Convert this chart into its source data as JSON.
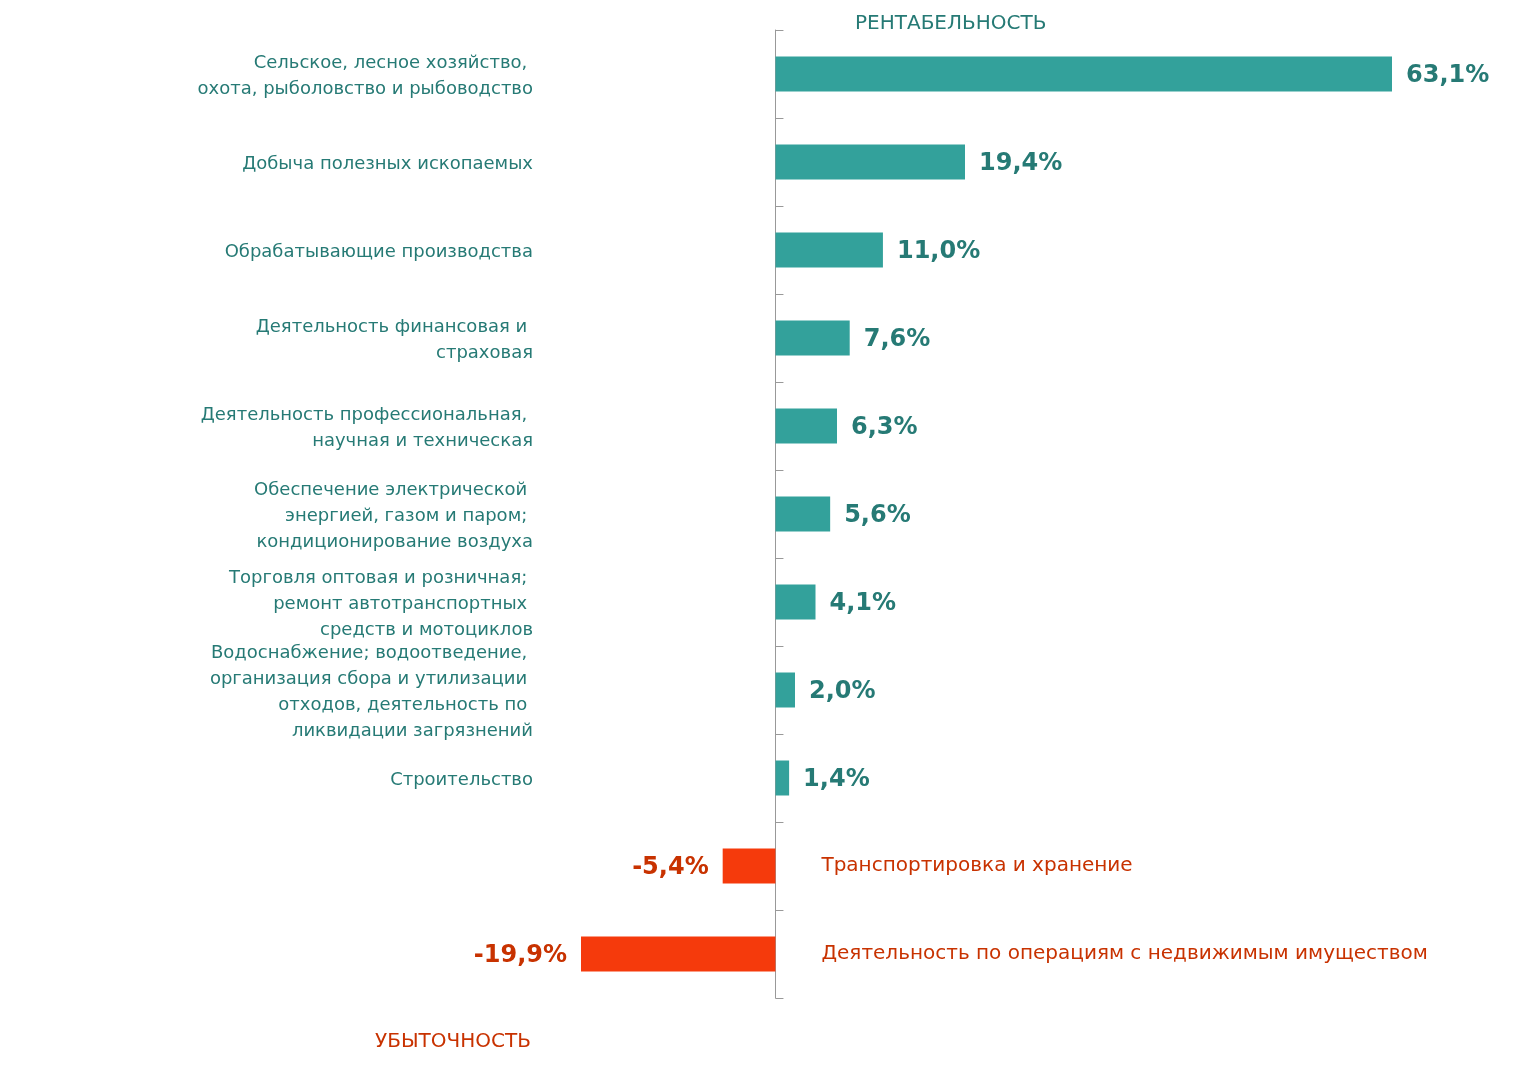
{
  "chart_data": {
    "type": "bar",
    "orientation": "horizontal",
    "title": "РЕНТАБЕЛЬНОСТЬ",
    "annotations": [
      "УБЫТОЧНОСТЬ"
    ],
    "categories": [
      "Сельское, лесное хозяйство, охота, рыболовство и рыбоводство",
      "Добыча полезных ископаемых",
      "Обрабатывающие производства",
      "Деятельность финансовая и страховая",
      "Деятельность профессиональная, научная и техническая",
      "Обеспечение электрической энергией, газом и паром; кондиционирование воздуха",
      "Торговля оптовая и розничная; ремонт автотранспортных средств и мотоциклов",
      "Водоснабжение; водоотведение, организация сбора и утилизации отходов, деятельность по ликвидации загрязнений",
      "Строительство",
      "Транспортировка и хранение",
      "Деятельность по операциям с недвижимым имуществом"
    ],
    "values": [
      63.1,
      19.4,
      11.0,
      7.6,
      6.3,
      5.6,
      4.1,
      2.0,
      1.4,
      -5.4,
      -19.9
    ],
    "value_labels": [
      "63,1%",
      "19,4%",
      "11,0%",
      "7,6%",
      "6,3%",
      "5,6%",
      "4,1%",
      "2,0%",
      "1,4%",
      "-5,4%",
      "-19,9%"
    ],
    "colors": [
      "#33a19b",
      "#33a19b",
      "#33a19b",
      "#33a19b",
      "#33a19b",
      "#33a19b",
      "#33a19b",
      "#33a19b",
      "#33a19b",
      "#f53a0c",
      "#f53a0c"
    ],
    "grid": false
  }
}
